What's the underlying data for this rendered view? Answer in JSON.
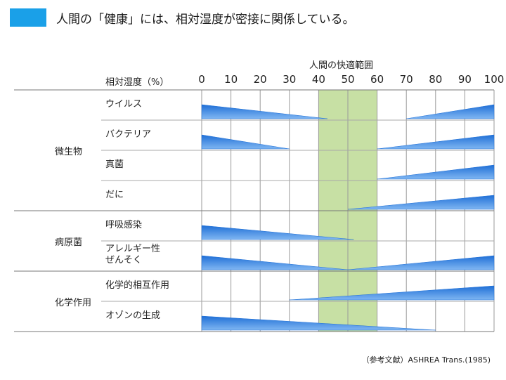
{
  "title": "人間の「健康」には、相対湿度が密接に関係している。",
  "colors": {
    "title_block": "#1aa0e8",
    "comfort_band": "#c7e0a4",
    "bar_top": "#1f6fd6",
    "bar_bottom": "#7fb6f2"
  },
  "chart_data": {
    "type": "table",
    "axis_title": "相対湿度（%）",
    "comfort_range_label": "人間の快適範囲",
    "comfort_range": [
      40,
      60
    ],
    "ticks": [
      "0",
      "10",
      "20",
      "30",
      "40",
      "50",
      "60",
      "70",
      "80",
      "90",
      "100"
    ],
    "xlim": [
      0,
      100
    ],
    "groups": [
      {
        "name": "微生物",
        "items": [
          {
            "label": "ウイルス",
            "wedges": [
              {
                "dir": "falling",
                "from": 0,
                "to": 43
              },
              {
                "dir": "rising",
                "from": 70,
                "to": 100
              }
            ]
          },
          {
            "label": "バクテリア",
            "wedges": [
              {
                "dir": "falling",
                "from": 0,
                "to": 30
              },
              {
                "dir": "rising",
                "from": 60,
                "to": 100
              }
            ]
          },
          {
            "label": "真菌",
            "wedges": [
              {
                "dir": "rising",
                "from": 60,
                "to": 100
              }
            ]
          },
          {
            "label": "だに",
            "wedges": [
              {
                "dir": "rising",
                "from": 50,
                "to": 100
              }
            ]
          }
        ]
      },
      {
        "name": "病原菌",
        "items": [
          {
            "label": "呼吸感染",
            "wedges": [
              {
                "dir": "falling",
                "from": 0,
                "to": 52
              }
            ]
          },
          {
            "label": "アレルギー性\nぜんそく",
            "wedges": [
              {
                "dir": "falling",
                "from": 0,
                "to": 50
              },
              {
                "dir": "rising",
                "from": 50,
                "to": 100
              }
            ]
          }
        ]
      },
      {
        "name": "化学作用",
        "items": [
          {
            "label": "化学的相互作用",
            "wedges": [
              {
                "dir": "rising",
                "from": 30,
                "to": 100
              }
            ]
          },
          {
            "label": "オゾンの生成",
            "wedges": [
              {
                "dir": "falling",
                "from": 0,
                "to": 80
              }
            ]
          }
        ]
      }
    ]
  },
  "reference": "（参考文献）ASHREA Trans.(1985)"
}
